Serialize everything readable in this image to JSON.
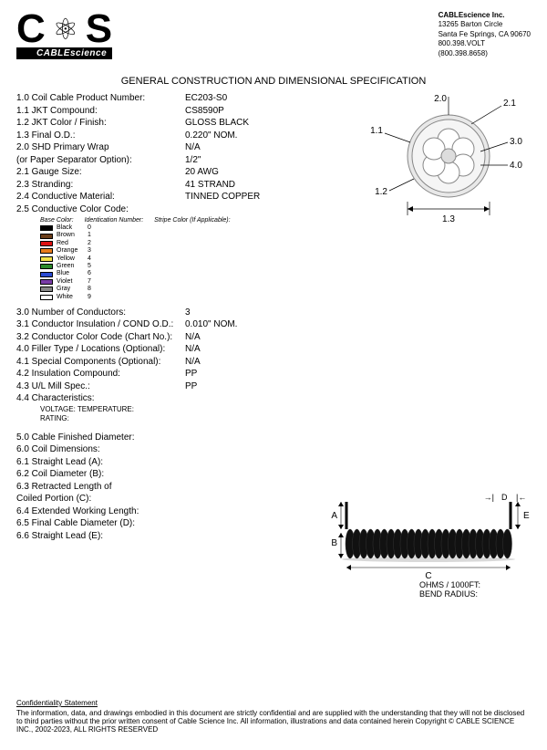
{
  "company": {
    "logo_text": "CABLEscience",
    "name": "CABLEscience Inc.",
    "addr1": "13265 Barton Circle",
    "addr2": "Santa Fe Springs, CA 90670",
    "phone1": "800.398.VOLT",
    "phone2": "(800.398.8658)"
  },
  "title": "GENERAL CONSTRUCTION AND DIMENSIONAL SPECIFICATION",
  "specs": [
    {
      "n": "1.0",
      "label": "Coil Cable Product Number:",
      "val": "EC203-S0"
    },
    {
      "n": "1.1",
      "label": "JKT Compound:",
      "val": "CS8590P"
    },
    {
      "n": "1.2",
      "label": "JKT Color / Finish:",
      "val": "GLOSS BLACK"
    },
    {
      "n": "1.3",
      "label": "Final O.D.:",
      "val": "0.220\" NOM."
    },
    {
      "n": "2.0",
      "label": "SHD Primary Wrap",
      "val": "N/A"
    },
    {
      "n": "",
      "label": "(or Paper Separator Option):",
      "val": "1/2\""
    },
    {
      "n": "2.1",
      "label": "Gauge Size:",
      "val": "20 AWG"
    },
    {
      "n": "2.3",
      "label": "Stranding:",
      "val": "41 STRAND"
    },
    {
      "n": "2.4",
      "label": "Conductive Material:",
      "val": "TINNED COPPER"
    },
    {
      "n": "2.5",
      "label": "Conductive Color Code:",
      "val": ""
    }
  ],
  "color_table": {
    "head_base": "Base Color:",
    "head_id": "Identication Number:",
    "head_stripe": "Stripe Color (If Applicable):",
    "rows": [
      {
        "color": "#000000",
        "name": "Black",
        "num": "0"
      },
      {
        "color": "#6b3e1a",
        "name": "Brown",
        "num": "1"
      },
      {
        "color": "#d11",
        "name": "Red",
        "num": "2"
      },
      {
        "color": "#e87b1a",
        "name": "Orange",
        "num": "3"
      },
      {
        "color": "#f2e24a",
        "name": "Yellow",
        "num": "4"
      },
      {
        "color": "#2c8a2c",
        "name": "Green",
        "num": "5"
      },
      {
        "color": "#2a4bd1",
        "name": "Blue",
        "num": "6"
      },
      {
        "color": "#7a3ca8",
        "name": "Violet",
        "num": "7"
      },
      {
        "color": "#888888",
        "name": "Gray",
        "num": "8"
      },
      {
        "color": "#ffffff",
        "name": "White",
        "num": "9"
      }
    ]
  },
  "specs2": [
    {
      "n": "3.0",
      "label": "Number of Conductors:",
      "val": "3"
    },
    {
      "n": "3.1",
      "label": "Conductor Insulation / COND O.D.:",
      "val": "0.010\" NOM."
    },
    {
      "n": "3.2",
      "label": "Conductor Color Code (Chart No.):",
      "val": "N/A"
    },
    {
      "n": "4.0",
      "label": "Filler Type / Locations (Optional):",
      "val": "N/A"
    },
    {
      "n": "4.1",
      "label": "Special Components (Optional):",
      "val": "N/A"
    },
    {
      "n": "4.2",
      "label": "Insulation Compound:",
      "val": "PP"
    },
    {
      "n": "4.3",
      "label": "U/L Mill Spec.:",
      "val": "PP"
    },
    {
      "n": "4.4",
      "label": "Characteristics:",
      "val": ""
    }
  ],
  "char": {
    "l1": "VOLTAGE: TEMPERATURE:",
    "l2": "RATING:",
    "r1": "OHMS / 1000FT:",
    "r2": "BEND RADIUS:"
  },
  "specs3": [
    {
      "n": "5.0",
      "label": "Cable Finished Diameter:",
      "val": ""
    },
    {
      "n": "6.0",
      "label": "Coil Dimensions:",
      "val": ""
    },
    {
      "n": "6.1",
      "label": "Straight Lead (A):",
      "val": ""
    },
    {
      "n": "6.2",
      "label": "Coil Diameter (B):",
      "val": ""
    },
    {
      "n": "6.3",
      "label": "Retracted Length of",
      "val": ""
    },
    {
      "n": "",
      "label": "Coiled Portion (C):",
      "val": ""
    },
    {
      "n": "6.4",
      "label": "Extended Working Length:",
      "val": ""
    },
    {
      "n": "6.5",
      "label": "Final Cable Diameter (D):",
      "val": ""
    },
    {
      "n": "6.6",
      "label": "Straight Lead (E):",
      "val": ""
    }
  ],
  "cross_labels": {
    "l11": "1.1",
    "l12": "1.2",
    "l13": "1.3",
    "l20": "2.0",
    "l21": "2.1",
    "l30": "3.0",
    "l40": "4.0"
  },
  "coil_labels": {
    "A": "A",
    "B": "B",
    "C": "C",
    "D": "D",
    "E": "E",
    "arrow": "→|",
    "arrow2": "|←"
  },
  "footer": {
    "title": "Confidentiality Statement",
    "body": "The information, data, and drawings embodied in this document are strictly confidential and are supplied with the understanding that they will not be disclosed to third parties without the prior written consent of Cable Science Inc. All information, illustrations and data contained herein Copyright © CABLE SCIENCE INC., 2002-2023, ALL RIGHTS RESERVED"
  }
}
